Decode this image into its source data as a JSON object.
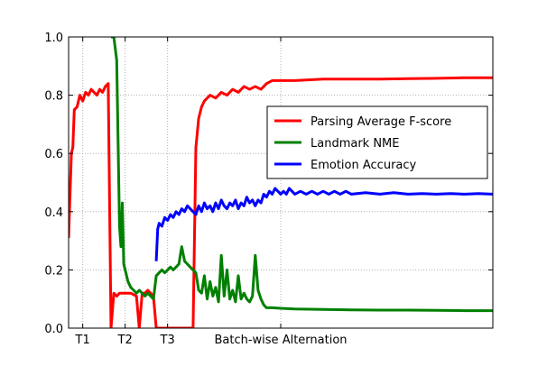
{
  "chart_data": {
    "type": "line",
    "ylim": [
      0.0,
      1.0
    ],
    "xlim": [
      0,
      150
    ],
    "yticks": [
      0.0,
      0.2,
      0.4,
      0.6,
      0.8,
      1.0
    ],
    "ytick_labels": [
      "0.0",
      "0.2",
      "0.4",
      "0.6",
      "0.8",
      "1.0"
    ],
    "xtick_labels": [
      {
        "x": 5,
        "label": "T1"
      },
      {
        "x": 20,
        "label": "T2"
      },
      {
        "x": 35,
        "label": "T3"
      },
      {
        "x": 75,
        "label": "Batch-wise Alternation"
      }
    ],
    "grid": true,
    "legend_position": "upper-right",
    "series": [
      {
        "name": "Parsing Average F-score",
        "color": "#ff0000",
        "points": [
          [
            0,
            0.31
          ],
          [
            1,
            0.6
          ],
          [
            1.5,
            0.62
          ],
          [
            2,
            0.75
          ],
          [
            3,
            0.76
          ],
          [
            4,
            0.8
          ],
          [
            5,
            0.78
          ],
          [
            6,
            0.81
          ],
          [
            7,
            0.8
          ],
          [
            8,
            0.82
          ],
          [
            9,
            0.81
          ],
          [
            10,
            0.8
          ],
          [
            11,
            0.82
          ],
          [
            12,
            0.81
          ],
          [
            13,
            0.83
          ],
          [
            14,
            0.84
          ],
          [
            15,
            0.0
          ],
          [
            16,
            0.12
          ],
          [
            17,
            0.11
          ],
          [
            18,
            0.12
          ],
          [
            19,
            0.12
          ],
          [
            20,
            0.12
          ],
          [
            22,
            0.12
          ],
          [
            24,
            0.11
          ],
          [
            25,
            0.0
          ],
          [
            26,
            0.12
          ],
          [
            27,
            0.12
          ],
          [
            28,
            0.13
          ],
          [
            29,
            0.12
          ],
          [
            30,
            0.11
          ],
          [
            31,
            0.0
          ],
          [
            32,
            0.0
          ],
          [
            40,
            0.0
          ],
          [
            44,
            0.0
          ],
          [
            45,
            0.62
          ],
          [
            46,
            0.72
          ],
          [
            47,
            0.76
          ],
          [
            48,
            0.78
          ],
          [
            50,
            0.8
          ],
          [
            52,
            0.79
          ],
          [
            54,
            0.81
          ],
          [
            56,
            0.8
          ],
          [
            58,
            0.82
          ],
          [
            60,
            0.81
          ],
          [
            62,
            0.83
          ],
          [
            64,
            0.82
          ],
          [
            66,
            0.83
          ],
          [
            68,
            0.82
          ],
          [
            70,
            0.84
          ],
          [
            72,
            0.85
          ],
          [
            74,
            0.85
          ],
          [
            80,
            0.85
          ],
          [
            90,
            0.855
          ],
          [
            100,
            0.855
          ],
          [
            110,
            0.855
          ],
          [
            120,
            0.857
          ],
          [
            130,
            0.858
          ],
          [
            140,
            0.86
          ],
          [
            150,
            0.86
          ]
        ]
      },
      {
        "name": "Landmark NME",
        "color": "#008000",
        "points": [
          [
            15,
            1.0
          ],
          [
            16,
            1.0
          ],
          [
            17,
            0.92
          ],
          [
            18,
            0.35
          ],
          [
            18.5,
            0.28
          ],
          [
            19,
            0.43
          ],
          [
            19.5,
            0.22
          ],
          [
            20,
            0.2
          ],
          [
            21,
            0.16
          ],
          [
            22,
            0.14
          ],
          [
            23,
            0.13
          ],
          [
            24,
            0.12
          ],
          [
            25,
            0.13
          ],
          [
            26,
            0.12
          ],
          [
            27,
            0.11
          ],
          [
            28,
            0.12
          ],
          [
            29,
            0.11
          ],
          [
            30,
            0.1
          ],
          [
            31,
            0.18
          ],
          [
            32,
            0.19
          ],
          [
            33,
            0.2
          ],
          [
            34,
            0.19
          ],
          [
            35,
            0.2
          ],
          [
            36,
            0.21
          ],
          [
            37,
            0.2
          ],
          [
            38,
            0.21
          ],
          [
            39,
            0.22
          ],
          [
            40,
            0.28
          ],
          [
            41,
            0.23
          ],
          [
            42,
            0.22
          ],
          [
            43,
            0.21
          ],
          [
            44,
            0.2
          ],
          [
            45,
            0.19
          ],
          [
            46,
            0.13
          ],
          [
            47,
            0.12
          ],
          [
            48,
            0.18
          ],
          [
            49,
            0.1
          ],
          [
            50,
            0.16
          ],
          [
            51,
            0.11
          ],
          [
            52,
            0.14
          ],
          [
            53,
            0.09
          ],
          [
            54,
            0.25
          ],
          [
            55,
            0.11
          ],
          [
            56,
            0.2
          ],
          [
            57,
            0.1
          ],
          [
            58,
            0.13
          ],
          [
            59,
            0.09
          ],
          [
            60,
            0.18
          ],
          [
            61,
            0.1
          ],
          [
            62,
            0.12
          ],
          [
            63,
            0.1
          ],
          [
            64,
            0.09
          ],
          [
            65,
            0.11
          ],
          [
            66,
            0.25
          ],
          [
            67,
            0.13
          ],
          [
            68,
            0.1
          ],
          [
            69,
            0.08
          ],
          [
            70,
            0.07
          ],
          [
            72,
            0.07
          ],
          [
            75,
            0.068
          ],
          [
            80,
            0.066
          ],
          [
            90,
            0.064
          ],
          [
            100,
            0.063
          ],
          [
            110,
            0.062
          ],
          [
            120,
            0.062
          ],
          [
            130,
            0.061
          ],
          [
            140,
            0.06
          ],
          [
            150,
            0.06
          ]
        ]
      },
      {
        "name": "Emotion Accuracy",
        "color": "#0000ff",
        "points": [
          [
            31,
            0.23
          ],
          [
            31.5,
            0.34
          ],
          [
            32,
            0.36
          ],
          [
            33,
            0.35
          ],
          [
            34,
            0.38
          ],
          [
            35,
            0.37
          ],
          [
            36,
            0.39
          ],
          [
            37,
            0.38
          ],
          [
            38,
            0.4
          ],
          [
            39,
            0.39
          ],
          [
            40,
            0.41
          ],
          [
            41,
            0.4
          ],
          [
            42,
            0.42
          ],
          [
            43,
            0.41
          ],
          [
            44,
            0.4
          ],
          [
            45,
            0.39
          ],
          [
            46,
            0.42
          ],
          [
            47,
            0.4
          ],
          [
            48,
            0.43
          ],
          [
            49,
            0.41
          ],
          [
            50,
            0.42
          ],
          [
            51,
            0.4
          ],
          [
            52,
            0.43
          ],
          [
            53,
            0.41
          ],
          [
            54,
            0.44
          ],
          [
            55,
            0.42
          ],
          [
            56,
            0.41
          ],
          [
            57,
            0.43
          ],
          [
            58,
            0.42
          ],
          [
            59,
            0.44
          ],
          [
            60,
            0.41
          ],
          [
            61,
            0.43
          ],
          [
            62,
            0.42
          ],
          [
            63,
            0.45
          ],
          [
            64,
            0.43
          ],
          [
            65,
            0.44
          ],
          [
            66,
            0.42
          ],
          [
            67,
            0.44
          ],
          [
            68,
            0.43
          ],
          [
            69,
            0.46
          ],
          [
            70,
            0.45
          ],
          [
            71,
            0.47
          ],
          [
            72,
            0.46
          ],
          [
            73,
            0.48
          ],
          [
            74,
            0.47
          ],
          [
            75,
            0.46
          ],
          [
            76,
            0.47
          ],
          [
            77,
            0.46
          ],
          [
            78,
            0.48
          ],
          [
            79,
            0.47
          ],
          [
            80,
            0.46
          ],
          [
            82,
            0.47
          ],
          [
            84,
            0.46
          ],
          [
            86,
            0.47
          ],
          [
            88,
            0.46
          ],
          [
            90,
            0.47
          ],
          [
            92,
            0.46
          ],
          [
            94,
            0.47
          ],
          [
            96,
            0.46
          ],
          [
            98,
            0.47
          ],
          [
            100,
            0.46
          ],
          [
            105,
            0.465
          ],
          [
            110,
            0.46
          ],
          [
            115,
            0.465
          ],
          [
            120,
            0.46
          ],
          [
            125,
            0.462
          ],
          [
            130,
            0.46
          ],
          [
            135,
            0.462
          ],
          [
            140,
            0.46
          ],
          [
            145,
            0.462
          ],
          [
            150,
            0.46
          ]
        ]
      }
    ]
  }
}
